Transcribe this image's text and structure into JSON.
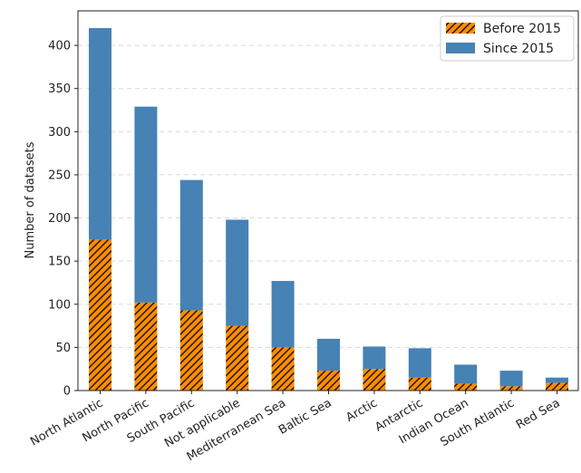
{
  "chart_data": {
    "type": "bar",
    "stacked": true,
    "title": "",
    "xlabel": "",
    "ylabel": "Number of datasets",
    "ylim": [
      0,
      440
    ],
    "yticks": [
      0,
      50,
      100,
      150,
      200,
      250,
      300,
      350,
      400
    ],
    "grid": "horizontal dashed",
    "legend_position": "top-right",
    "categories": [
      "North Atlantic",
      "North Pacific",
      "South Pacific",
      "Not applicable",
      "Mediterranean Sea",
      "Baltic Sea",
      "Arctic",
      "Antarctic",
      "Indian Ocean",
      "South Atlantic",
      "Red Sea"
    ],
    "series": [
      {
        "name": "Before 2015",
        "color": "#ff8c00",
        "hatch": "diagonal",
        "values": [
          175,
          102,
          93,
          75,
          50,
          23,
          25,
          15,
          8,
          5,
          9
        ]
      },
      {
        "name": "Since 2015",
        "color": "#4682b4",
        "hatch": "none",
        "values": [
          245,
          227,
          151,
          123,
          77,
          37,
          26,
          34,
          22,
          18,
          6
        ]
      }
    ]
  }
}
